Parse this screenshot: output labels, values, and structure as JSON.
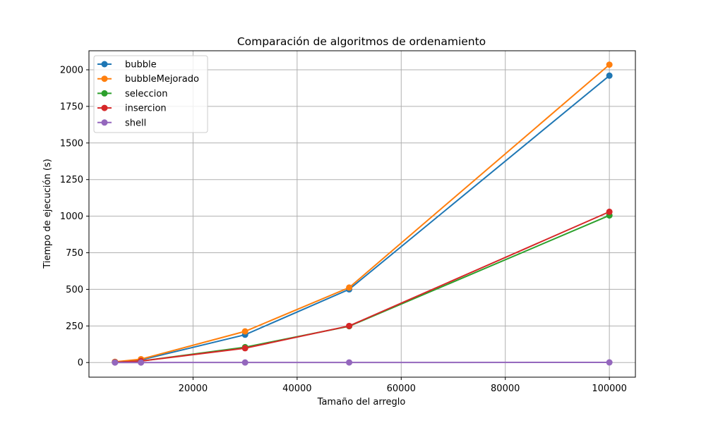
{
  "chart_data": {
    "type": "line",
    "title": "Comparación de algoritmos de ordenamiento",
    "xlabel": "Tamaño del arreglo",
    "ylabel": "Tiempo de ejecución (s)",
    "x": [
      5000,
      10000,
      30000,
      50000,
      100000
    ],
    "xlim": [
      0,
      105000
    ],
    "ylim": [
      -100,
      2130
    ],
    "xticks": [
      20000,
      40000,
      60000,
      80000,
      100000
    ],
    "yticks": [
      0,
      250,
      500,
      750,
      1000,
      1250,
      1500,
      1750,
      2000
    ],
    "grid": true,
    "legend_position": "top-left",
    "series": [
      {
        "name": "bubble",
        "color": "#1f77b4",
        "values": [
          4,
          18,
          190,
          500,
          1960
        ]
      },
      {
        "name": "bubbleMejorado",
        "color": "#ff7f0e",
        "values": [
          5,
          23,
          213,
          512,
          2035
        ]
      },
      {
        "name": "seleccion",
        "color": "#2ca02c",
        "values": [
          2,
          10,
          105,
          248,
          1005
        ]
      },
      {
        "name": "insercion",
        "color": "#d62728",
        "values": [
          2,
          10,
          98,
          250,
          1030
        ]
      },
      {
        "name": "shell",
        "color": "#9467bd",
        "values": [
          0.1,
          0.2,
          0.4,
          0.6,
          1
        ]
      }
    ]
  }
}
